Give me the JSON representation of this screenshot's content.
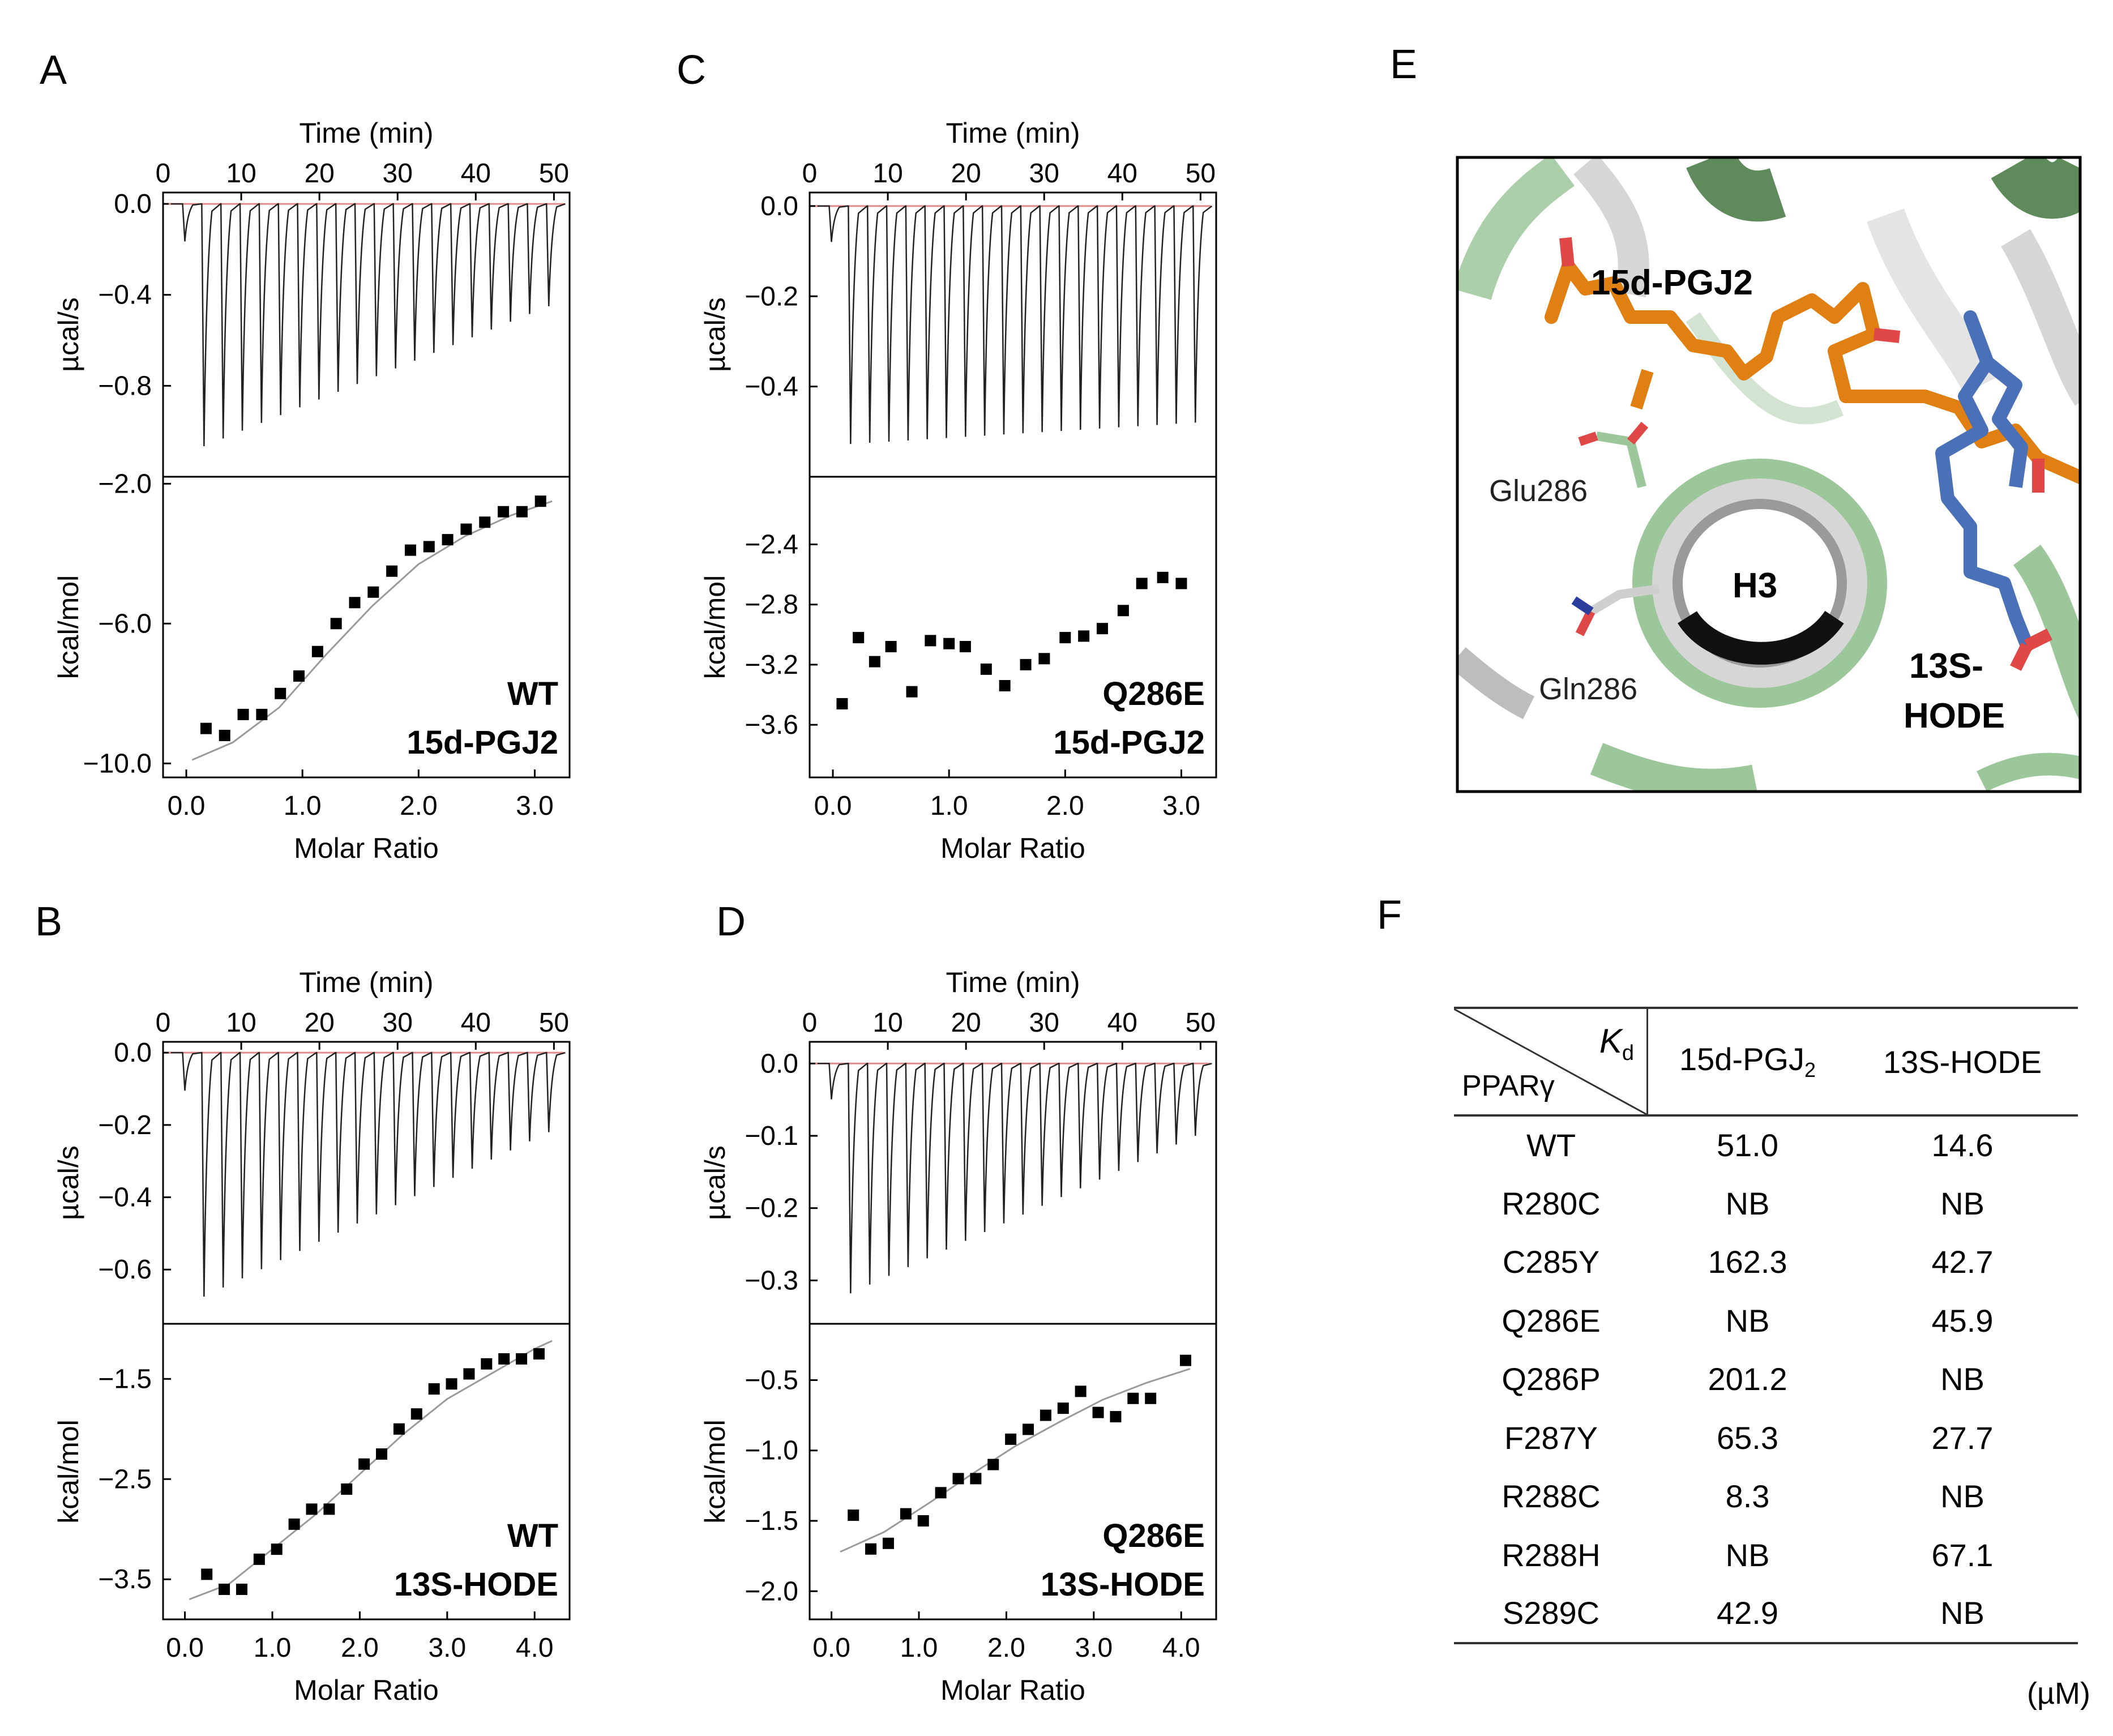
{
  "figure": {
    "panel_labels": [
      "A",
      "B",
      "C",
      "D",
      "E",
      "F"
    ]
  },
  "chart_data": [
    {
      "panel": "A",
      "type": "scatter",
      "top": {
        "xlabel": "Time  (min)",
        "ylabel": "µcal/s",
        "xticks": [
          "0",
          "10",
          "20",
          "30",
          "40",
          "50"
        ],
        "yticks": [
          "0.0",
          "−0.4",
          "−0.8"
        ],
        "xlim": [
          0,
          52
        ],
        "ylim": [
          -1.2,
          0.05
        ],
        "n_injections": 20,
        "peak_min": -1.1,
        "peak_last": -0.45
      },
      "bottom": {
        "xlabel": "Molar Ratio",
        "ylabel": "kcal/mol",
        "xticks": [
          "0.0",
          "1.0",
          "2.0",
          "3.0"
        ],
        "yticks": [
          "−2.0",
          "−6.0",
          "−10.0"
        ],
        "xlim": [
          -0.2,
          3.3
        ],
        "ylim": [
          -10.4,
          -1.8
        ],
        "x": [
          0.17,
          0.33,
          0.49,
          0.65,
          0.81,
          0.97,
          1.13,
          1.29,
          1.45,
          1.61,
          1.77,
          1.93,
          2.09,
          2.25,
          2.41,
          2.57,
          2.73,
          2.89,
          3.05
        ],
        "y": [
          -9.0,
          -9.2,
          -8.6,
          -8.6,
          -8.0,
          -7.5,
          -6.8,
          -6.0,
          -5.4,
          -5.1,
          -4.5,
          -3.9,
          -3.8,
          -3.6,
          -3.3,
          -3.1,
          -2.8,
          -2.8,
          -2.5
        ],
        "fit": [
          [
            0.05,
            -9.9
          ],
          [
            0.4,
            -9.4
          ],
          [
            0.8,
            -8.4
          ],
          [
            1.2,
            -6.9
          ],
          [
            1.6,
            -5.5
          ],
          [
            2.0,
            -4.3
          ],
          [
            2.4,
            -3.5
          ],
          [
            2.8,
            -2.9
          ],
          [
            3.15,
            -2.5
          ]
        ]
      },
      "annotations": [
        "WT",
        "15d-PGJ2"
      ]
    },
    {
      "panel": "B",
      "type": "scatter",
      "top": {
        "xlabel": "Time  (min)",
        "ylabel": "µcal/s",
        "xticks": [
          "0",
          "10",
          "20",
          "30",
          "40",
          "50"
        ],
        "yticks": [
          "0.0",
          "−0.2",
          "−0.4",
          "−0.6"
        ],
        "xlim": [
          0,
          52
        ],
        "ylim": [
          -0.75,
          0.03
        ],
        "n_injections": 20,
        "peak_min": -0.7,
        "peak_last": -0.22
      },
      "bottom": {
        "xlabel": "Molar Ratio",
        "ylabel": "kcal/mol",
        "xticks": [
          "0.0",
          "1.0",
          "2.0",
          "3.0",
          "4.0"
        ],
        "yticks": [
          "−1.5",
          "−2.5",
          "−3.5"
        ],
        "xlim": [
          -0.25,
          4.4
        ],
        "ylim": [
          -3.9,
          -0.95
        ],
        "x": [
          0.25,
          0.45,
          0.65,
          0.85,
          1.05,
          1.25,
          1.45,
          1.65,
          1.85,
          2.05,
          2.25,
          2.45,
          2.65,
          2.85,
          3.05,
          3.25,
          3.45,
          3.65,
          3.85,
          4.05
        ],
        "y": [
          -3.45,
          -3.6,
          -3.6,
          -3.3,
          -3.2,
          -2.95,
          -2.8,
          -2.8,
          -2.6,
          -2.35,
          -2.25,
          -2.0,
          -1.85,
          -1.6,
          -1.55,
          -1.45,
          -1.35,
          -1.3,
          -1.3,
          -1.25
        ],
        "fit": [
          [
            0.05,
            -3.7
          ],
          [
            0.5,
            -3.55
          ],
          [
            1.0,
            -3.2
          ],
          [
            1.5,
            -2.85
          ],
          [
            2.0,
            -2.45
          ],
          [
            2.5,
            -2.05
          ],
          [
            3.0,
            -1.7
          ],
          [
            3.5,
            -1.45
          ],
          [
            4.0,
            -1.2
          ],
          [
            4.2,
            -1.12
          ]
        ]
      },
      "annotations": [
        "WT",
        "13S-HODE"
      ]
    },
    {
      "panel": "C",
      "type": "scatter",
      "top": {
        "xlabel": "Time  (min)",
        "ylabel": "µcal/s",
        "xticks": [
          "0",
          "10",
          "20",
          "30",
          "40",
          "50"
        ],
        "yticks": [
          "0.0",
          "−0.2",
          "−0.4"
        ],
        "xlim": [
          0,
          52
        ],
        "ylim": [
          -0.6,
          0.03
        ],
        "n_injections": 20,
        "peak_min": -0.53,
        "peak_last": -0.48
      },
      "bottom": {
        "xlabel": "Molar Ratio",
        "ylabel": "kcal/mol",
        "xticks": [
          "0.0",
          "1.0",
          "2.0",
          "3.0"
        ],
        "yticks": [
          "−2.4",
          "−2.8",
          "−3.2",
          "−3.6"
        ],
        "xlim": [
          -0.2,
          3.3
        ],
        "ylim": [
          -3.95,
          -1.95
        ],
        "x": [
          0.08,
          0.22,
          0.36,
          0.5,
          0.68,
          0.84,
          1.0,
          1.14,
          1.32,
          1.48,
          1.66,
          1.82,
          2.0,
          2.16,
          2.32,
          2.5,
          2.66,
          2.84,
          3.0
        ],
        "y": [
          -3.46,
          -3.02,
          -3.18,
          -3.08,
          -3.38,
          -3.04,
          -3.06,
          -3.08,
          -3.23,
          -3.34,
          -3.2,
          -3.16,
          -3.02,
          -3.01,
          -2.96,
          -2.84,
          -2.66,
          -2.62,
          -2.66
        ],
        "fit": []
      },
      "annotations": [
        "Q286E",
        "15d-PGJ2"
      ]
    },
    {
      "panel": "D",
      "type": "scatter",
      "top": {
        "xlabel": "Time  (min)",
        "ylabel": "µcal/s",
        "xticks": [
          "0",
          "10",
          "20",
          "30",
          "40",
          "50"
        ],
        "yticks": [
          "0.0",
          "−0.1",
          "−0.2",
          "−0.3"
        ],
        "xlim": [
          0,
          52
        ],
        "ylim": [
          -0.36,
          0.03
        ],
        "n_injections": 20,
        "peak_min": -0.33,
        "peak_last": -0.1
      },
      "bottom": {
        "xlabel": "Molar Ratio",
        "ylabel": "kcal/mol",
        "xticks": [
          "0.0",
          "1.0",
          "2.0",
          "3.0",
          "4.0"
        ],
        "yticks": [
          "−0.5",
          "−1.0",
          "−1.5",
          "−2.0"
        ],
        "xlim": [
          -0.25,
          4.4
        ],
        "ylim": [
          -2.2,
          -0.1
        ],
        "x": [
          0.25,
          0.45,
          0.65,
          0.85,
          1.05,
          1.25,
          1.45,
          1.65,
          1.85,
          2.05,
          2.25,
          2.45,
          2.65,
          2.85,
          3.05,
          3.25,
          3.45,
          3.65,
          4.05
        ],
        "y": [
          -1.46,
          -1.7,
          -1.66,
          -1.45,
          -1.5,
          -1.3,
          -1.2,
          -1.2,
          -1.1,
          -0.92,
          -0.85,
          -0.75,
          -0.7,
          -0.58,
          -0.73,
          -0.76,
          -0.63,
          -0.63,
          -0.36
        ],
        "fit": [
          [
            0.1,
            -1.72
          ],
          [
            0.6,
            -1.58
          ],
          [
            1.1,
            -1.38
          ],
          [
            1.6,
            -1.17
          ],
          [
            2.1,
            -0.97
          ],
          [
            2.6,
            -0.8
          ],
          [
            3.1,
            -0.64
          ],
          [
            3.6,
            -0.52
          ],
          [
            4.1,
            -0.42
          ]
        ]
      },
      "annotations": [
        "Q286E",
        "13S-HODE"
      ]
    }
  ],
  "structure_labels": {
    "ligand1": "15d-PGJ2",
    "residue1": "Glu286",
    "helix": "H3",
    "residue2": "Gln286",
    "ligand2_line1": "13S-",
    "ligand2_line2": "HODE",
    "colors": {
      "ligand1": "#e07f12",
      "ligand2": "#4a70b8",
      "wt_ribbon": "#9cc79a",
      "mut_ribbon": "#d6d6d6"
    }
  },
  "kd_table": {
    "header_kd": "K",
    "header_kd_sub": "d",
    "header_row": "PPARγ",
    "col1": "15d-PGJ",
    "col1_sub": "2",
    "col2": "13S-HODE",
    "rows": [
      {
        "name": "WT",
        "c1": "51.0",
        "c2": "14.6"
      },
      {
        "name": "R280C",
        "c1": "NB",
        "c2": "NB"
      },
      {
        "name": "C285Y",
        "c1": "162.3",
        "c2": "42.7"
      },
      {
        "name": "Q286E",
        "c1": "NB",
        "c2": "45.9"
      },
      {
        "name": "Q286P",
        "c1": "201.2",
        "c2": "NB"
      },
      {
        "name": "F287Y",
        "c1": "65.3",
        "c2": "27.7"
      },
      {
        "name": "R288C",
        "c1": "8.3",
        "c2": "NB"
      },
      {
        "name": "R288H",
        "c1": "NB",
        "c2": "67.1"
      },
      {
        "name": "S289C",
        "c1": "42.9",
        "c2": "NB"
      }
    ],
    "unit": "(µM)"
  }
}
